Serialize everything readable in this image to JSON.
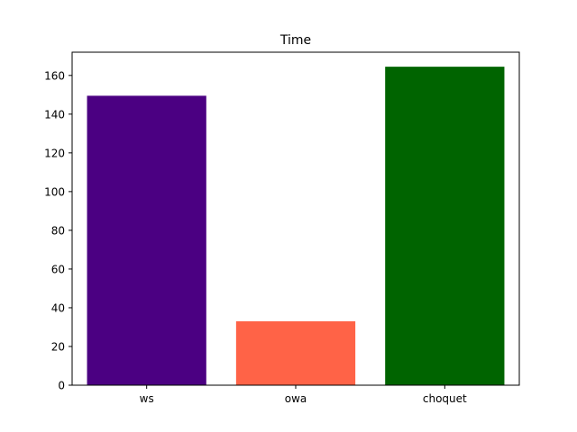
{
  "chart_data": {
    "type": "bar",
    "title": "Time",
    "xlabel": "",
    "ylabel": "",
    "categories": [
      "ws",
      "owa",
      "choquet"
    ],
    "values": [
      149.5,
      33,
      164.5
    ],
    "colors": [
      "#4B0082",
      "#FF6347",
      "#006400"
    ],
    "ylim": [
      0,
      172
    ],
    "yticks": [
      0,
      20,
      40,
      60,
      80,
      100,
      120,
      140,
      160
    ],
    "grid": false,
    "legend": "none"
  }
}
